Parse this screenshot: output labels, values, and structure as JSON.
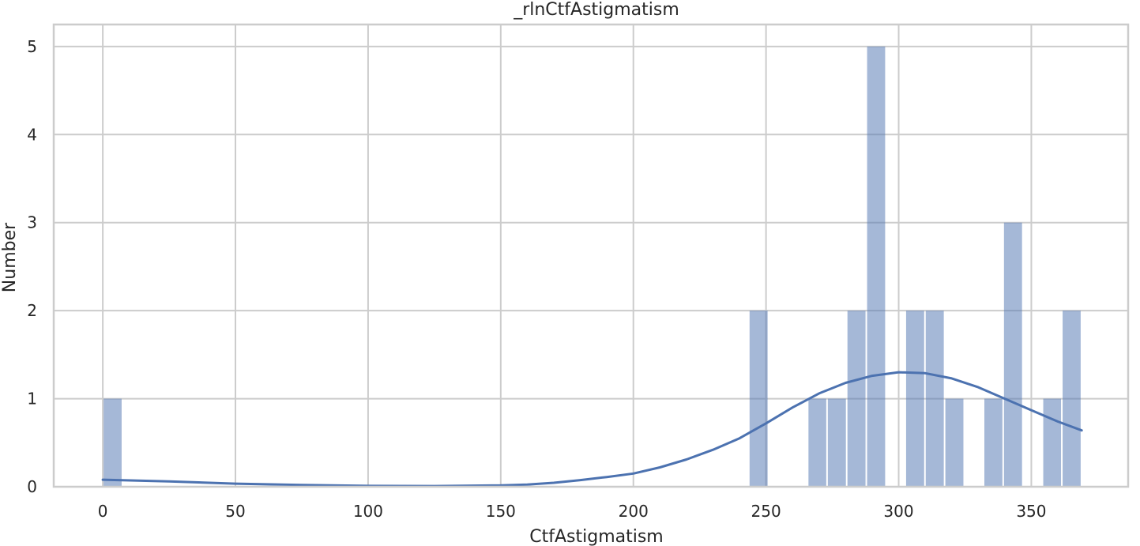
{
  "chart_data": {
    "type": "histogram",
    "title": "_rlnCtfAstigmatism",
    "xlabel": "CtfAstigmatism",
    "ylabel": "Number",
    "xlim": [
      -18.5,
      386.5
    ],
    "ylim": [
      0,
      5.25
    ],
    "xticks": [
      0,
      50,
      100,
      150,
      200,
      250,
      300,
      350
    ],
    "yticks": [
      0,
      1,
      2,
      3,
      4,
      5
    ],
    "grid": true,
    "colors": {
      "bar": "#4c72b0",
      "bar_opacity": 0.5,
      "kde": "#4c72b0",
      "grid": "#cccccc",
      "spine": "#cccccc"
    },
    "bins": [
      {
        "x0": 0.0,
        "x1": 7.4,
        "count": 1
      },
      {
        "x0": 243.5,
        "x1": 250.9,
        "count": 2
      },
      {
        "x0": 265.7,
        "x1": 273.0,
        "count": 1
      },
      {
        "x0": 273.0,
        "x1": 280.4,
        "count": 1
      },
      {
        "x0": 280.4,
        "x1": 287.8,
        "count": 2
      },
      {
        "x0": 287.8,
        "x1": 295.2,
        "count": 5
      },
      {
        "x0": 302.5,
        "x1": 309.9,
        "count": 2
      },
      {
        "x0": 309.9,
        "x1": 317.3,
        "count": 2
      },
      {
        "x0": 317.3,
        "x1": 324.7,
        "count": 1
      },
      {
        "x0": 332.0,
        "x1": 339.4,
        "count": 1
      },
      {
        "x0": 339.4,
        "x1": 346.8,
        "count": 3
      },
      {
        "x0": 354.2,
        "x1": 361.5,
        "count": 1
      },
      {
        "x0": 361.5,
        "x1": 368.9,
        "count": 2
      }
    ],
    "kde": {
      "x": [
        0,
        25,
        50,
        75,
        100,
        125,
        150,
        160,
        170,
        180,
        190,
        200,
        210,
        220,
        230,
        240,
        250,
        260,
        270,
        280,
        290,
        300,
        310,
        320,
        330,
        340,
        350,
        360,
        369
      ],
      "y": [
        0.08,
        0.06,
        0.035,
        0.02,
        0.01,
        0.008,
        0.015,
        0.025,
        0.045,
        0.075,
        0.11,
        0.15,
        0.22,
        0.31,
        0.42,
        0.55,
        0.72,
        0.9,
        1.06,
        1.18,
        1.26,
        1.3,
        1.29,
        1.23,
        1.13,
        1.0,
        0.87,
        0.74,
        0.64
      ]
    }
  }
}
